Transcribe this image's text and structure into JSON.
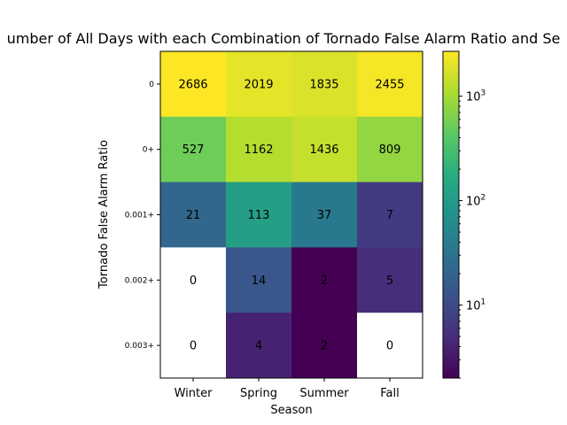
{
  "chart_data": {
    "type": "heatmap",
    "title": "umber of All Days with each Combination of Tornado False Alarm Ratio and Se",
    "xlabel": "Season",
    "ylabel": "Tornado False Alarm Ratio",
    "x_categories": [
      "Winter",
      "Spring",
      "Summer",
      "Fall"
    ],
    "y_categories": [
      "0",
      "0+",
      "0.001+",
      "0.002+",
      "0.003+"
    ],
    "values": [
      [
        2686,
        2019,
        1835,
        2455
      ],
      [
        527,
        1162,
        1436,
        809
      ],
      [
        21,
        113,
        37,
        7
      ],
      [
        0,
        14,
        2,
        5
      ],
      [
        0,
        4,
        2,
        0
      ]
    ],
    "colorscale": "viridis",
    "color_scale_type": "log",
    "color_range": [
      2,
      2686
    ],
    "zero_color": "#ffffff",
    "colorbar": {
      "ticks": [
        {
          "value": 10,
          "base": "10",
          "exp": "1"
        },
        {
          "value": 100,
          "base": "10",
          "exp": "2"
        },
        {
          "value": 1000,
          "base": "10",
          "exp": "3"
        }
      ]
    }
  }
}
